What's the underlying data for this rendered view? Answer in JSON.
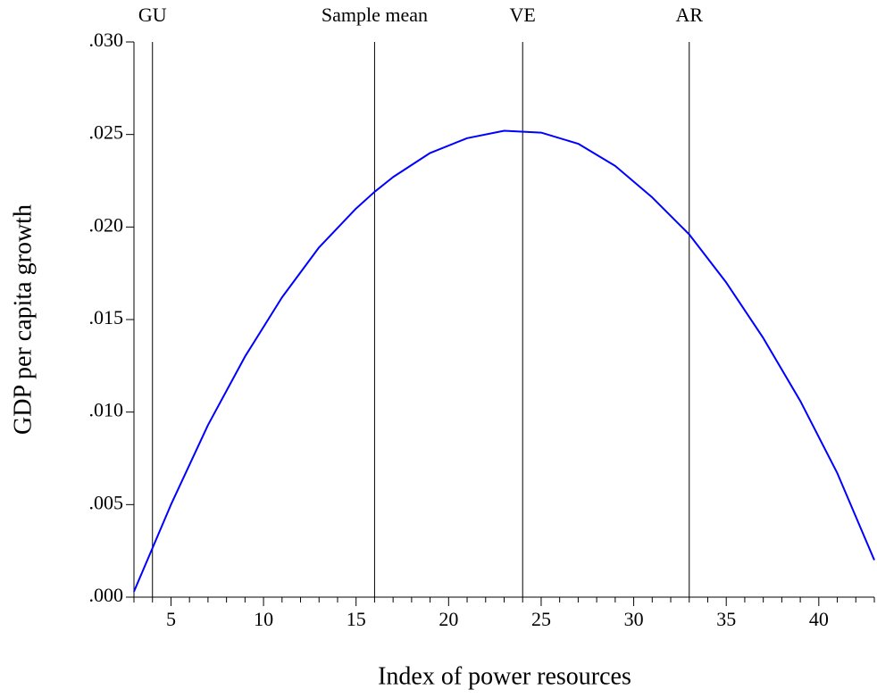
{
  "chart_data": {
    "type": "line",
    "xlabel": "Index of power resources",
    "ylabel": "GDP per capita growth",
    "x": [
      3,
      5,
      7,
      9,
      11,
      13,
      15,
      16,
      17,
      19,
      21,
      23,
      25,
      27,
      29,
      31,
      33,
      35,
      37,
      39,
      41,
      43
    ],
    "series": [
      {
        "color": "#0000ff",
        "values": [
          0.0003,
          0.005,
          0.0093,
          0.013,
          0.0162,
          0.0189,
          0.021,
          0.0219,
          0.0227,
          0.024,
          0.0248,
          0.0252,
          0.0251,
          0.0245,
          0.0233,
          0.0216,
          0.0196,
          0.017,
          0.014,
          0.0106,
          0.0067,
          0.002
        ]
      }
    ],
    "xlim": [
      3,
      43
    ],
    "xticks": [
      5,
      10,
      15,
      20,
      25,
      30,
      35,
      40
    ],
    "xminorticks": [
      3,
      4,
      6,
      7,
      8,
      9,
      11,
      12,
      13,
      14,
      16,
      17,
      18,
      19,
      21,
      22,
      23,
      24,
      26,
      27,
      28,
      29,
      31,
      32,
      33,
      34,
      36,
      37,
      38,
      39,
      41,
      42,
      43
    ],
    "ylim": [
      0,
      0.03
    ],
    "yticks": [
      {
        "value": 0,
        "label": ".000"
      },
      {
        "value": 0.005,
        "label": ".005"
      },
      {
        "value": 0.01,
        "label": ".010"
      },
      {
        "value": 0.015,
        "label": ".015"
      },
      {
        "value": 0.02,
        "label": ".020"
      },
      {
        "value": 0.025,
        "label": ".025"
      },
      {
        "value": 0.03,
        "label": ".030"
      }
    ],
    "vlines": [
      {
        "x": 4,
        "label": "GU"
      },
      {
        "x": 16,
        "label": "Sample mean"
      },
      {
        "x": 24,
        "label": "VE"
      },
      {
        "x": 33,
        "label": "AR"
      }
    ]
  }
}
